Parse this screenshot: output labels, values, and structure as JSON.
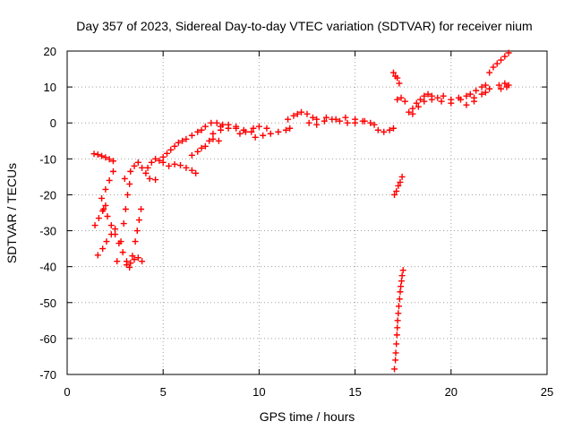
{
  "chart_data": {
    "type": "scatter",
    "title": "Day 357 of 2023, Sidereal Day-to-day VTEC variation (SDTVAR) for receiver nium",
    "xlabel": "GPS time / hours",
    "ylabel": "SDTVAR / TECUs",
    "xlim": [
      0,
      25
    ],
    "ylim": [
      -70,
      20
    ],
    "xticks": [
      "0",
      "5",
      "10",
      "15",
      "20",
      "25"
    ],
    "yticks": [
      "20",
      "10",
      "0",
      "-10",
      "-20",
      "-30",
      "-40",
      "-50",
      "-60",
      "-70"
    ],
    "grid": true,
    "marker": "plus",
    "color": "#ff0000",
    "series": [
      {
        "name": "SDTVAR",
        "points": [
          [
            1.4,
            -8.6
          ],
          [
            1.6,
            -8.8
          ],
          [
            1.8,
            -9.2
          ],
          [
            2.0,
            -9.6
          ],
          [
            2.2,
            -10.1
          ],
          [
            2.4,
            -10.6
          ],
          [
            1.45,
            -28.5
          ],
          [
            1.65,
            -26.5
          ],
          [
            1.85,
            -24.5
          ],
          [
            2.0,
            -23.0
          ],
          [
            1.6,
            -36.8
          ],
          [
            1.85,
            -35.0
          ],
          [
            2.05,
            -33.0
          ],
          [
            2.3,
            -31.0
          ],
          [
            2.5,
            -29.5
          ],
          [
            1.8,
            -21.0
          ],
          [
            2.0,
            -18.5
          ],
          [
            2.2,
            -16.0
          ],
          [
            2.4,
            -13.5
          ],
          [
            1.9,
            -24.0
          ],
          [
            2.1,
            -26.0
          ],
          [
            2.3,
            -28.5
          ],
          [
            2.5,
            -31.0
          ],
          [
            2.7,
            -33.5
          ],
          [
            2.9,
            -36.0
          ],
          [
            3.1,
            -38.5
          ],
          [
            3.25,
            -40.2
          ],
          [
            2.6,
            -38.5
          ],
          [
            2.8,
            -33.0
          ],
          [
            2.95,
            -28.0
          ],
          [
            3.05,
            -24.0
          ],
          [
            3.15,
            -20.0
          ],
          [
            3.25,
            -17.0
          ],
          [
            3.1,
            -39.5
          ],
          [
            3.3,
            -39.0
          ],
          [
            3.5,
            -38.0
          ],
          [
            3.7,
            -37.5
          ],
          [
            3.9,
            -38.5
          ],
          [
            3.4,
            -37.0
          ],
          [
            3.55,
            -33.0
          ],
          [
            3.65,
            -30.0
          ],
          [
            3.75,
            -27.0
          ],
          [
            3.85,
            -24.0
          ],
          [
            3.0,
            -15.5
          ],
          [
            3.3,
            -13.5
          ],
          [
            3.5,
            -12.0
          ],
          [
            3.7,
            -11.0
          ],
          [
            3.9,
            -12.5
          ],
          [
            4.1,
            -14.0
          ],
          [
            4.3,
            -15.5
          ],
          [
            4.6,
            -15.8
          ],
          [
            4.2,
            -12.5
          ],
          [
            4.4,
            -11.0
          ],
          [
            4.6,
            -10.0
          ],
          [
            4.8,
            -10.5
          ],
          [
            5.0,
            -11.0
          ],
          [
            5.3,
            -12.0
          ],
          [
            5.0,
            -9.5
          ],
          [
            5.2,
            -8.5
          ],
          [
            5.4,
            -7.5
          ],
          [
            5.6,
            -6.5
          ],
          [
            5.8,
            -5.5
          ],
          [
            6.0,
            -5.0
          ],
          [
            5.6,
            -11.5
          ],
          [
            5.9,
            -11.8
          ],
          [
            6.2,
            -12.5
          ],
          [
            6.5,
            -13.2
          ],
          [
            6.7,
            -14.0
          ],
          [
            6.2,
            -4.5
          ],
          [
            6.5,
            -3.5
          ],
          [
            6.8,
            -2.5
          ],
          [
            7.0,
            -2.0
          ],
          [
            7.2,
            -1.0
          ],
          [
            7.5,
            0.0
          ],
          [
            7.8,
            0.0
          ],
          [
            8.1,
            -0.5
          ],
          [
            6.5,
            -9.0
          ],
          [
            6.8,
            -8.0
          ],
          [
            7.0,
            -7.0
          ],
          [
            7.2,
            -6.5
          ],
          [
            7.4,
            -5.0
          ],
          [
            7.6,
            -4.5
          ],
          [
            7.9,
            -5.0
          ],
          [
            7.6,
            -3.0
          ],
          [
            8.0,
            -2.0
          ],
          [
            8.4,
            -1.5
          ],
          [
            8.8,
            -1.5
          ],
          [
            9.2,
            -2.0
          ],
          [
            9.6,
            -2.5
          ],
          [
            8.0,
            -1.0
          ],
          [
            8.4,
            -0.5
          ],
          [
            8.8,
            -1.0
          ],
          [
            9.0,
            -3.0
          ],
          [
            9.3,
            -2.5
          ],
          [
            9.7,
            -1.5
          ],
          [
            10.0,
            -1.0
          ],
          [
            10.4,
            -1.5
          ],
          [
            9.8,
            -4.0
          ],
          [
            10.2,
            -3.5
          ],
          [
            10.6,
            -3.0
          ],
          [
            11.0,
            -2.5
          ],
          [
            11.4,
            -2.0
          ],
          [
            11.6,
            -1.5
          ],
          [
            11.5,
            1.0
          ],
          [
            11.8,
            2.0
          ],
          [
            12.0,
            2.5
          ],
          [
            12.2,
            3.0
          ],
          [
            12.5,
            2.5
          ],
          [
            12.8,
            1.5
          ],
          [
            13.0,
            1.0
          ],
          [
            12.6,
            0.0
          ],
          [
            13.0,
            -0.5
          ],
          [
            13.4,
            0.5
          ],
          [
            13.8,
            1.0
          ],
          [
            14.2,
            0.5
          ],
          [
            14.6,
            0.0
          ],
          [
            15.0,
            0.0
          ],
          [
            15.4,
            0.5
          ],
          [
            15.8,
            0.0
          ],
          [
            13.5,
            1.5
          ],
          [
            14.0,
            1.0
          ],
          [
            14.5,
            1.5
          ],
          [
            15.0,
            1.0
          ],
          [
            15.5,
            0.5
          ],
          [
            16.0,
            -0.5
          ],
          [
            16.2,
            -2.0
          ],
          [
            16.5,
            -2.5
          ],
          [
            16.8,
            -2.0
          ],
          [
            17.0,
            -1.5
          ],
          [
            17.0,
            14.0
          ],
          [
            17.1,
            13.0
          ],
          [
            17.2,
            12.5
          ],
          [
            17.3,
            11.0
          ],
          [
            17.05,
            -20.0
          ],
          [
            17.15,
            -19.0
          ],
          [
            17.25,
            -17.5
          ],
          [
            17.35,
            -16.5
          ],
          [
            17.45,
            -15.0
          ],
          [
            17.05,
            -68.5
          ],
          [
            17.1,
            -66.0
          ],
          [
            17.12,
            -64.0
          ],
          [
            17.15,
            -61.5
          ],
          [
            17.18,
            -59.0
          ],
          [
            17.2,
            -57.0
          ],
          [
            17.22,
            -55.0
          ],
          [
            17.25,
            -53.0
          ],
          [
            17.28,
            -51.0
          ],
          [
            17.32,
            -49.0
          ],
          [
            17.35,
            -47.0
          ],
          [
            17.38,
            -45.5
          ],
          [
            17.42,
            -44.0
          ],
          [
            17.45,
            -42.5
          ],
          [
            17.5,
            -41.0
          ],
          [
            17.2,
            6.5
          ],
          [
            17.4,
            7.0
          ],
          [
            17.6,
            6.0
          ],
          [
            17.8,
            3.0
          ],
          [
            18.0,
            4.0
          ],
          [
            18.2,
            5.5
          ],
          [
            18.4,
            6.5
          ],
          [
            18.6,
            7.5
          ],
          [
            18.8,
            8.0
          ],
          [
            19.0,
            7.5
          ],
          [
            19.3,
            7.0
          ],
          [
            19.6,
            7.5
          ],
          [
            18.0,
            2.5
          ],
          [
            18.3,
            4.5
          ],
          [
            18.6,
            6.0
          ],
          [
            19.0,
            6.5
          ],
          [
            19.5,
            6.0
          ],
          [
            20.0,
            5.5
          ],
          [
            20.5,
            6.5
          ],
          [
            20.8,
            5.0
          ],
          [
            21.2,
            6.0
          ],
          [
            20.0,
            6.5
          ],
          [
            20.4,
            7.0
          ],
          [
            20.8,
            7.5
          ],
          [
            21.2,
            7.0
          ],
          [
            21.6,
            8.0
          ],
          [
            21.8,
            8.5
          ],
          [
            21.0,
            8.0
          ],
          [
            21.3,
            9.0
          ],
          [
            21.6,
            10.0
          ],
          [
            21.8,
            10.5
          ],
          [
            22.0,
            9.5
          ],
          [
            22.0,
            14.0
          ],
          [
            22.2,
            15.5
          ],
          [
            22.4,
            16.5
          ],
          [
            22.6,
            17.5
          ],
          [
            22.8,
            18.5
          ],
          [
            23.0,
            19.5
          ],
          [
            22.5,
            10.5
          ],
          [
            22.8,
            11.0
          ],
          [
            23.0,
            10.5
          ],
          [
            22.6,
            9.5
          ],
          [
            22.9,
            10.0
          ]
        ]
      }
    ]
  }
}
